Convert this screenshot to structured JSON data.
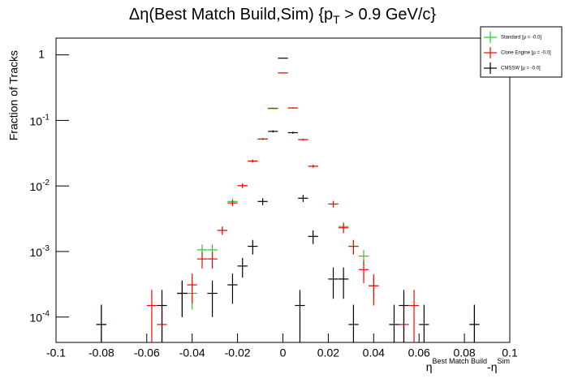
{
  "chart_data": {
    "type": "errorbar",
    "title": {
      "main": "Δη(Best Match Build,Sim) {p",
      "sub": "T",
      "tail": " > 0.9 GeV/c}"
    },
    "x_label": {
      "main": "η",
      "sup1": "Best Match Build",
      "mid": "-η",
      "sup2": "Sim"
    },
    "y_label": "Fraction of Tracks",
    "log_y": true,
    "xlim": [
      -0.1,
      0.1
    ],
    "ylim": [
      4.1e-05,
      1.8
    ],
    "xticks": [
      -0.1,
      -0.08,
      -0.06,
      -0.04,
      -0.02,
      0,
      0.02,
      0.04,
      0.06,
      0.08,
      0.1
    ],
    "yticks": [
      {
        "value": 0.0001,
        "label": "10",
        "exponent": "-4"
      },
      {
        "value": 0.001,
        "label": "10",
        "exponent": "-3"
      },
      {
        "value": 0.01,
        "label": "10",
        "exponent": "-2"
      },
      {
        "value": 0.1,
        "label": "10",
        "exponent": "-1"
      },
      1
    ],
    "xerr": 0.0022,
    "legend": "top-right",
    "series": [
      {
        "name": "Standard  [μ = -0.0]",
        "color": "#22cc22",
        "x": [
          -0.0444,
          -0.04,
          -0.0356,
          -0.0311,
          -0.0267,
          -0.0222,
          -0.0178,
          -0.0133,
          -0.0089,
          -0.0044,
          0,
          0.0044,
          0.0089,
          0.0133,
          0.0222,
          0.0267,
          0.0311,
          0.0356,
          0.04
        ],
        "values": [
          0.00023,
          0.00023,
          0.00106,
          0.00106,
          0.0021,
          0.0058,
          0.0101,
          0.024,
          0.052,
          0.152,
          0.53,
          0.155,
          0.051,
          0.02,
          0.0053,
          0.0024,
          0.0012,
          0.00085,
          0.0003
        ],
        "errors": [
          0.0001,
          0.0001,
          0.00022,
          0.00022,
          0.0003,
          0.0006,
          0.0008,
          0.0012,
          0.0017,
          0.003,
          0.006,
          0.003,
          0.0017,
          0.001,
          0.0006,
          0.0004,
          0.0003,
          0.0002,
          0.0001
        ]
      },
      {
        "name": "Clone Engine  [μ = -0.0]",
        "color": "#ff0000",
        "x": [
          -0.08,
          -0.0578,
          -0.0533,
          -0.0444,
          -0.04,
          -0.0356,
          -0.0311,
          -0.0267,
          -0.0222,
          -0.0178,
          -0.0133,
          -0.0089,
          -0.0044,
          0,
          0.0044,
          0.0089,
          0.0133,
          0.0222,
          0.0267,
          0.0311,
          0.0356,
          0.04,
          0.0533,
          0.0578,
          0.0844
        ],
        "values": [
          7.7e-05,
          0.00015,
          7.7e-05,
          0.00023,
          0.00031,
          0.00077,
          0.00077,
          0.0021,
          0.0055,
          0.0101,
          0.024,
          0.052,
          0.153,
          0.53,
          0.155,
          0.051,
          0.02,
          0.0053,
          0.0023,
          0.0012,
          0.00053,
          0.0003,
          7.7e-05,
          0.00015,
          7.7e-05
        ],
        "errors": [
          7.7e-05,
          0.00011,
          7.7e-05,
          0.00013,
          0.00015,
          0.00022,
          0.00022,
          0.0003,
          0.0006,
          0.0008,
          0.0012,
          0.0017,
          0.003,
          0.006,
          0.003,
          0.0017,
          0.001,
          0.0006,
          0.0004,
          0.0003,
          0.0002,
          0.00015,
          7.7e-05,
          0.00011,
          7.7e-05
        ]
      },
      {
        "name": "CMSSW  [μ = -0.0]",
        "color": "#000000",
        "x": [
          -0.08,
          -0.0533,
          -0.0444,
          -0.0311,
          -0.0222,
          -0.0178,
          -0.0133,
          -0.0089,
          -0.0044,
          0,
          0.0044,
          0.0075,
          0.0089,
          0.0133,
          0.0222,
          0.0267,
          0.0311,
          0.049,
          0.0533,
          0.0622,
          0.0844
        ],
        "values": [
          7.7e-05,
          0.00015,
          0.00023,
          0.00023,
          0.00031,
          0.0006,
          0.0012,
          0.0058,
          0.068,
          0.89,
          0.065,
          0.00015,
          0.0065,
          0.0017,
          0.00038,
          0.00038,
          7.7e-05,
          7.7e-05,
          0.00015,
          7.7e-05,
          7.7e-05
        ],
        "errors": [
          7.7e-05,
          0.00011,
          0.00013,
          0.00013,
          0.00015,
          0.0002,
          0.0003,
          0.0007,
          0.0025,
          0.009,
          0.0025,
          0.00011,
          0.0008,
          0.0004,
          0.00019,
          0.00019,
          7.7e-05,
          7.7e-05,
          0.00011,
          7.7e-05,
          7.7e-05
        ]
      }
    ]
  }
}
